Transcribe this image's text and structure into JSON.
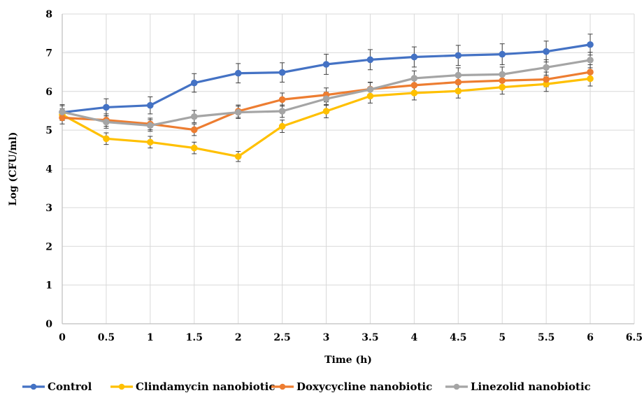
{
  "chart_data": {
    "type": "line",
    "title": "",
    "xlabel": "Time (h)",
    "ylabel": "Log (CFU/ml)",
    "xlim": [
      0,
      6.5
    ],
    "ylim": [
      0,
      8
    ],
    "x_ticks": [
      "0",
      "0.5",
      "1",
      "1.5",
      "2",
      "2.5",
      "3",
      "3.5",
      "4",
      "4.5",
      "5",
      "5.5",
      "6",
      "6.5"
    ],
    "y_ticks": [
      "0",
      "1",
      "2",
      "3",
      "4",
      "5",
      "6",
      "7",
      "8"
    ],
    "grid": "on",
    "legend_position": "bottom",
    "x": [
      0,
      0.5,
      1,
      1.5,
      2,
      2.5,
      3,
      3.5,
      4,
      4.5,
      5,
      5.5,
      6
    ],
    "series": [
      {
        "name": "Control",
        "color": "#4472C4",
        "values": [
          5.46,
          5.59,
          5.64,
          6.22,
          6.47,
          6.49,
          6.7,
          6.82,
          6.89,
          6.93,
          6.96,
          7.03,
          7.21
        ],
        "error": [
          0.2,
          0.22,
          0.22,
          0.24,
          0.25,
          0.25,
          0.26,
          0.26,
          0.26,
          0.26,
          0.27,
          0.27,
          0.27
        ]
      },
      {
        "name": "Clindamycin nanobiotic",
        "color": "#FFC000",
        "values": [
          5.4,
          4.78,
          4.69,
          4.54,
          4.32,
          5.1,
          5.49,
          5.88,
          5.96,
          6.01,
          6.11,
          6.19,
          6.33
        ],
        "error": [
          0.15,
          0.15,
          0.15,
          0.15,
          0.13,
          0.16,
          0.17,
          0.18,
          0.18,
          0.18,
          0.18,
          0.19,
          0.19
        ]
      },
      {
        "name": "Doxycycline nanobiotic",
        "color": "#ED7D31",
        "values": [
          5.32,
          5.26,
          5.16,
          5.01,
          5.49,
          5.79,
          5.91,
          6.06,
          6.16,
          6.24,
          6.28,
          6.31,
          6.5
        ],
        "error": [
          0.16,
          0.16,
          0.15,
          0.15,
          0.16,
          0.17,
          0.18,
          0.18,
          0.18,
          0.19,
          0.19,
          0.19,
          0.19
        ]
      },
      {
        "name": "Linezolid nanobiotic",
        "color": "#A5A5A5",
        "values": [
          5.47,
          5.21,
          5.12,
          5.35,
          5.46,
          5.49,
          5.81,
          6.05,
          6.34,
          6.42,
          6.44,
          6.62,
          6.81
        ],
        "error": [
          0.16,
          0.16,
          0.15,
          0.16,
          0.16,
          0.16,
          0.17,
          0.18,
          0.19,
          0.19,
          0.19,
          0.2,
          0.2
        ]
      }
    ]
  }
}
